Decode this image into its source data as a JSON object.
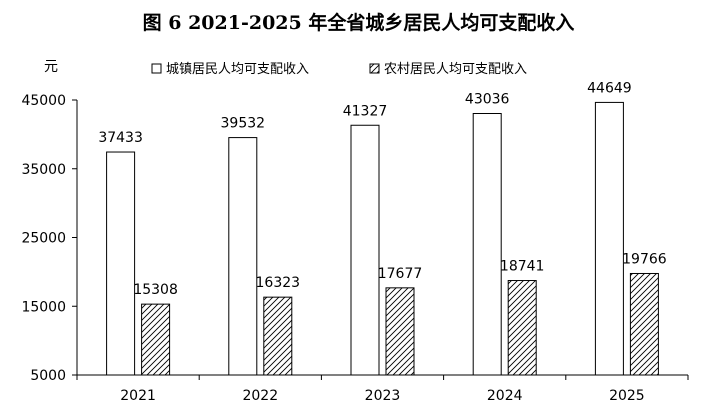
{
  "chart_data": {
    "type": "bar",
    "title": "图 6   2021-2025 年全省城乡居民人均可支配收入",
    "y_unit": "元",
    "categories": [
      "2021",
      "2022",
      "2023",
      "2024",
      "2025"
    ],
    "series": [
      {
        "name": "城镇居民人均可支配收入",
        "values": [
          37433,
          39532,
          41327,
          43036,
          44649
        ],
        "fill": "white"
      },
      {
        "name": "农村居民人均可支配收入",
        "values": [
          15308,
          16323,
          17677,
          18741,
          19766
        ],
        "fill": "hatched"
      }
    ],
    "ylim": [
      5000,
      45000
    ],
    "yticks": [
      5000,
      15000,
      25000,
      35000,
      45000
    ],
    "grid": false,
    "legend_position": "top-center",
    "colors": {
      "bar_stroke": "#000000",
      "bar_fill": "#ffffff",
      "hatch": "#000000"
    }
  }
}
